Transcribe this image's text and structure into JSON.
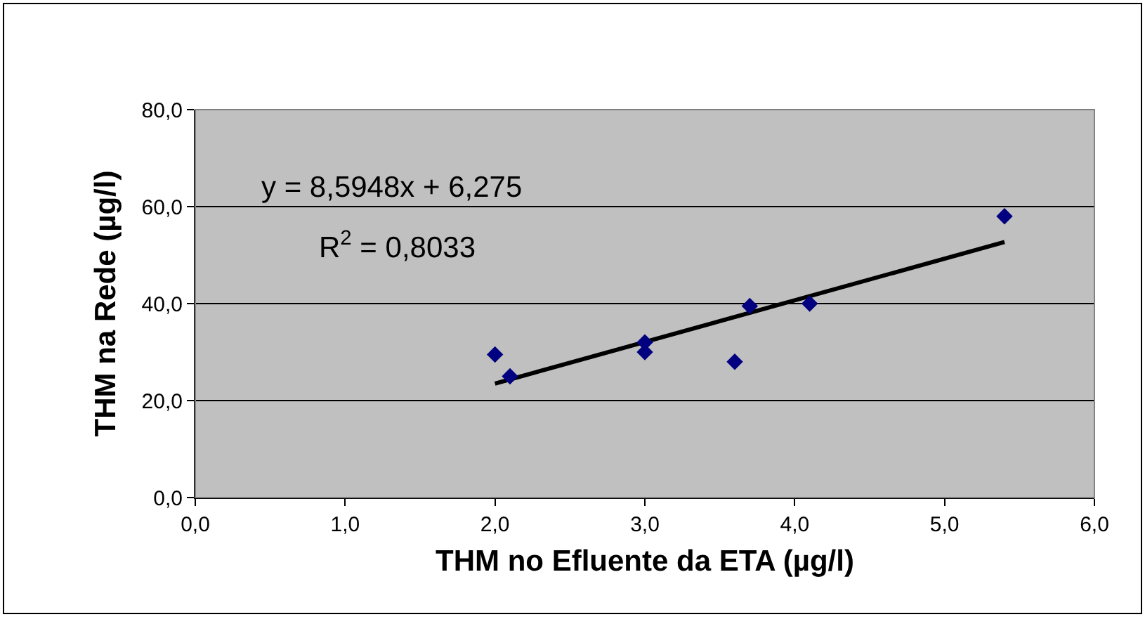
{
  "chart_data": {
    "type": "scatter",
    "xlabel": "THM no Efluente da ETA (µg/l)",
    "ylabel": "THM na Rede (µg/l)",
    "x": [
      2.0,
      2.1,
      3.0,
      3.0,
      3.6,
      3.7,
      4.1,
      5.4
    ],
    "series": [
      {
        "color": "#000080",
        "marker": "diamond",
        "values": [
          29.5,
          25,
          32,
          30,
          28,
          39.5,
          40,
          58
        ]
      },
      {
        "type": "line",
        "color": "#000000",
        "marker": "none",
        "line_style": "solid",
        "x": [
          2.0,
          5.4
        ],
        "values": [
          23.5,
          52.7
        ]
      }
    ],
    "xlim": [
      0,
      6
    ],
    "ylim": [
      0,
      80
    ],
    "xticks": [
      {
        "value": 0,
        "label": "0,0"
      },
      {
        "value": 1,
        "label": "1,0"
      },
      {
        "value": 2,
        "label": "2,0"
      },
      {
        "value": 3,
        "label": "3,0"
      },
      {
        "value": 4,
        "label": "4,0"
      },
      {
        "value": 5,
        "label": "5,0"
      },
      {
        "value": 6,
        "label": "6,0"
      }
    ],
    "yticks": [
      {
        "value": 0,
        "label": "0,0"
      },
      {
        "value": 20,
        "label": "20,0"
      },
      {
        "value": 40,
        "label": "40,0"
      },
      {
        "value": 60,
        "label": "60,0"
      },
      {
        "value": 80,
        "label": "80,0"
      }
    ],
    "grid": "y",
    "annotations": [
      "y = 8,5948x + 6,275",
      "R$^{2}$ = 0,8033"
    ]
  }
}
